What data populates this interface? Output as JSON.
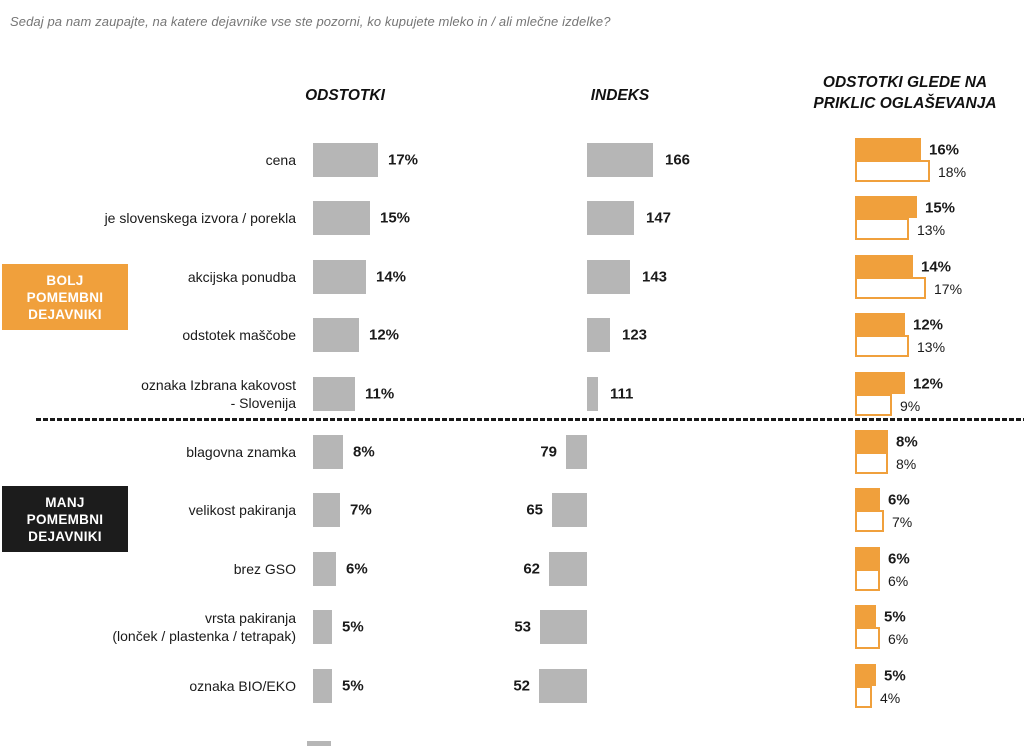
{
  "title": "Sedaj pa nam zaupajte, na katere dejavnike vse ste pozorni, ko kupujete mleko in / ali mlečne izdelke?",
  "headers": {
    "pct": "ODSTOTKI",
    "index": "INDEKS",
    "recall_line1": "ODSTOTKI GLEDE NA",
    "recall_line2": "PRIKLIC OGLAŠEVANJA"
  },
  "badges": [
    {
      "name": "bolj-pomembni",
      "lines": [
        "BOLJ",
        "POMEMBNI",
        "DEJAVNIKI"
      ],
      "color": "#F0A03C"
    },
    {
      "name": "manj-pomembni",
      "lines": [
        "MANJ",
        "POMEMBNI",
        "DEJAVNIKI"
      ],
      "color": "#1C1C1C"
    }
  ],
  "colors": {
    "accent_orange": "#F0A03C",
    "bar_gray": "#B6B6B6",
    "badge_black": "#1C1C1C",
    "text": "#1A1A1A",
    "title_gray": "#757575"
  },
  "chart_data": {
    "type": "bar",
    "title": "Sedaj pa nam zaupajte, na katere dejavnike vse ste pozorni, ko kupujete mleko in / ali mlečne izdelke?",
    "categories": [
      "cena",
      "je slovenskega izvora / porekla",
      "akcijska ponudba",
      "odstotek maščobe",
      "oznaka Izbrana kakovost - Slovenija",
      "blagovna znamka",
      "velikost pakiranja",
      "brez GSO",
      "vrsta pakiranja (lonček / plastenka / tetrapak)",
      "oznaka BIO/EKO"
    ],
    "series": [
      {
        "name": "ODSTOTKI",
        "unit": "%",
        "values": [
          17,
          15,
          14,
          12,
          11,
          8,
          7,
          6,
          5,
          5
        ]
      },
      {
        "name": "INDEKS",
        "baseline": 100,
        "values": [
          166,
          147,
          143,
          123,
          111,
          79,
          65,
          62,
          53,
          52
        ]
      },
      {
        "name": "ODSTOTKI GLEDE NA PRIKLIC OGLAŠEVANJA (priklic, polni oranžni stolpec)",
        "unit": "%",
        "values": [
          16,
          15,
          14,
          12,
          12,
          8,
          6,
          6,
          5,
          5
        ]
      },
      {
        "name": "ODSTOTKI GLEDE NA PRIKLIC OGLAŠEVANJA (brez priklica, obrobljen stolpec)",
        "unit": "%",
        "values": [
          18,
          13,
          17,
          13,
          9,
          8,
          7,
          6,
          6,
          4
        ]
      }
    ],
    "groups": [
      {
        "label": "BOLJ POMEMBNI DEJAVNIKI",
        "rows": [
          0,
          1,
          2,
          3,
          4
        ]
      },
      {
        "label": "MANJ POMEMBNI DEJAVNIKI",
        "rows": [
          5,
          6,
          7,
          8,
          9
        ]
      }
    ],
    "divider_after_row": 4,
    "rows": [
      {
        "label_lines": [
          "cena"
        ],
        "pct": 17,
        "pct_label": "17%",
        "index": 166,
        "index_label": "166",
        "recall_filled": 16,
        "recall_filled_label": "16%",
        "recall_outline": 18,
        "recall_outline_label": "18%"
      },
      {
        "label_lines": [
          "je slovenskega izvora / porekla"
        ],
        "pct": 15,
        "pct_label": "15%",
        "index": 147,
        "index_label": "147",
        "recall_filled": 15,
        "recall_filled_label": "15%",
        "recall_outline": 13,
        "recall_outline_label": "13%"
      },
      {
        "label_lines": [
          "akcijska ponudba"
        ],
        "pct": 14,
        "pct_label": "14%",
        "index": 143,
        "index_label": "143",
        "recall_filled": 14,
        "recall_filled_label": "14%",
        "recall_outline": 17,
        "recall_outline_label": "17%"
      },
      {
        "label_lines": [
          "odstotek maščobe"
        ],
        "pct": 12,
        "pct_label": "12%",
        "index": 123,
        "index_label": "123",
        "recall_filled": 12,
        "recall_filled_label": "12%",
        "recall_outline": 13,
        "recall_outline_label": "13%"
      },
      {
        "label_lines": [
          "oznaka Izbrana kakovost",
          "- Slovenija"
        ],
        "pct": 11,
        "pct_label": "11%",
        "index": 111,
        "index_label": "111",
        "recall_filled": 12,
        "recall_filled_label": "12%",
        "recall_outline": 9,
        "recall_outline_label": "9%"
      },
      {
        "label_lines": [
          "blagovna znamka"
        ],
        "pct": 8,
        "pct_label": "8%",
        "index": 79,
        "index_label": "79",
        "recall_filled": 8,
        "recall_filled_label": "8%",
        "recall_outline": 8,
        "recall_outline_label": "8%"
      },
      {
        "label_lines": [
          "velikost pakiranja"
        ],
        "pct": 7,
        "pct_label": "7%",
        "index": 65,
        "index_label": "65",
        "recall_filled": 6,
        "recall_filled_label": "6%",
        "recall_outline": 7,
        "recall_outline_label": "7%"
      },
      {
        "label_lines": [
          "brez GSO"
        ],
        "pct": 6,
        "pct_label": "6%",
        "index": 62,
        "index_label": "62",
        "recall_filled": 6,
        "recall_filled_label": "6%",
        "recall_outline": 6,
        "recall_outline_label": "6%"
      },
      {
        "label_lines": [
          "vrsta pakiranja",
          "(lonček / plastenka / tetrapak)"
        ],
        "pct": 5,
        "pct_label": "5%",
        "index": 53,
        "index_label": "53",
        "recall_filled": 5,
        "recall_filled_label": "5%",
        "recall_outline": 6,
        "recall_outline_label": "6%"
      },
      {
        "label_lines": [
          "oznaka BIO/EKO"
        ],
        "pct": 5,
        "pct_label": "5%",
        "index": 52,
        "index_label": "52",
        "recall_filled": 5,
        "recall_filled_label": "5%",
        "recall_outline": 4,
        "recall_outline_label": "4%"
      }
    ]
  }
}
